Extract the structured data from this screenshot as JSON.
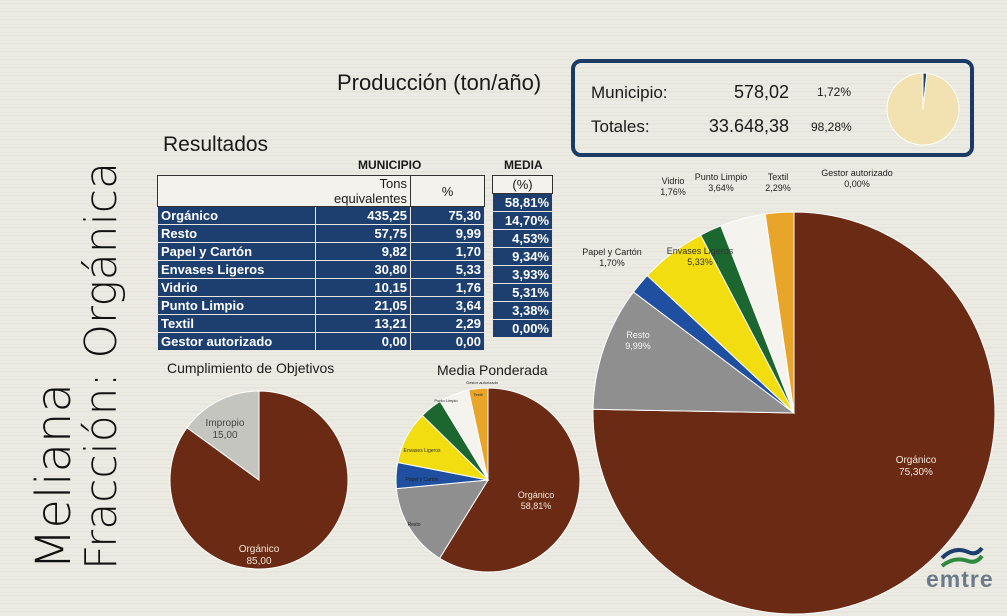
{
  "side_title": {
    "line1": "Meliana",
    "line2": "Fracción: Orgánica"
  },
  "production_title": "Producción (ton/año)",
  "results_title": "Resultados",
  "summary": {
    "municipio_label": "Municipio:",
    "municipio_value": "578,02",
    "municipio_pct": "1,72%",
    "totales_label": "Totales:",
    "totales_value": "33.648,38",
    "totales_pct": "98,28%"
  },
  "table": {
    "municipio_header": "MUNICIPIO",
    "media_header": "MEDIA",
    "col_tons": "Tons equivalentes",
    "col_pct": "%",
    "col_media": "(%)",
    "rows": [
      {
        "label": "Orgánico",
        "tons": "435,25",
        "pct": "75,30",
        "media": "58,81%"
      },
      {
        "label": "Resto",
        "tons": "57,75",
        "pct": "9,99",
        "media": "14,70%"
      },
      {
        "label": "Papel y Cartón",
        "tons": "9,82",
        "pct": "1,70",
        "media": "4,53%"
      },
      {
        "label": "Envases Ligeros",
        "tons": "30,80",
        "pct": "5,33",
        "media": "9,34%"
      },
      {
        "label": "Vidrio",
        "tons": "10,15",
        "pct": "1,76",
        "media": "3,93%"
      },
      {
        "label": "Punto Limpio",
        "tons": "21,05",
        "pct": "3,64",
        "media": "5,31%"
      },
      {
        "label": "Textil",
        "tons": "13,21",
        "pct": "2,29",
        "media": "3,38%"
      },
      {
        "label": "Gestor autorizado",
        "tons": "0,00",
        "pct": "0,00",
        "media": "0,00%"
      }
    ]
  },
  "colors": {
    "organico": "#6b2a14",
    "resto": "#8f8f8f",
    "papel": "#1f4fa0",
    "envases": "#f2dd10",
    "vidrio": "#1c6630",
    "punto": "#f4f3ee",
    "textil": "#e9a52a",
    "gestor": "#f4f3ee",
    "impropio": "#c5c5c0",
    "table_blue": "#1c3f70",
    "box_border": "#1b3a64",
    "mini_pie_main": "#f2e2b2",
    "mini_pie_slice": "#1c3f70"
  },
  "brand": "emtre",
  "chart_data": [
    {
      "type": "pie",
      "title": "Cumplimiento de Objetivos",
      "slices": [
        {
          "label": "Orgánico",
          "value": 85.0,
          "display": "85,00",
          "color": "#6b2a14"
        },
        {
          "label": "Impropio",
          "value": 15.0,
          "display": "15,00",
          "color": "#c5c5c0"
        }
      ]
    },
    {
      "type": "pie",
      "title": "Media Ponderada",
      "slices": [
        {
          "label": "Orgánico",
          "value": 58.81,
          "display": "58,81%",
          "color": "#6b2a14"
        },
        {
          "label": "Resto",
          "value": 14.7,
          "color": "#8f8f8f"
        },
        {
          "label": "Papel y Cartón",
          "value": 4.53,
          "color": "#1f4fa0"
        },
        {
          "label": "Envases Ligeros",
          "value": 9.34,
          "color": "#f2dd10"
        },
        {
          "label": "Vidrio",
          "value": 3.93,
          "color": "#1c6630"
        },
        {
          "label": "Punto Limpio",
          "value": 5.31,
          "color": "#f4f3ee"
        },
        {
          "label": "Textil",
          "value": 3.38,
          "color": "#e9a52a"
        },
        {
          "label": "Gestor autorizado",
          "value": 0.0,
          "color": "#f4f3ee"
        }
      ]
    },
    {
      "type": "pie",
      "title": "",
      "slices": [
        {
          "label": "Orgánico",
          "value": 75.3,
          "display": "75,30%",
          "color": "#6b2a14"
        },
        {
          "label": "Resto",
          "value": 9.99,
          "display": "9,99%",
          "color": "#8f8f8f"
        },
        {
          "label": "Papel y Cartón",
          "value": 1.7,
          "display": "1,70%",
          "color": "#1f4fa0"
        },
        {
          "label": "Envases Ligeros",
          "value": 5.33,
          "display": "5,33%",
          "color": "#f2dd10"
        },
        {
          "label": "Vidrio",
          "value": 1.76,
          "display": "1,76%",
          "color": "#1c6630"
        },
        {
          "label": "Punto Limpio",
          "value": 3.64,
          "display": "3,64%",
          "color": "#f4f3ee"
        },
        {
          "label": "Textil",
          "value": 2.29,
          "display": "2,29%",
          "color": "#e9a52a"
        },
        {
          "label": "Gestor autorizado",
          "value": 0.0,
          "display": "0,00%",
          "color": "#f4f3ee"
        }
      ]
    },
    {
      "type": "pie",
      "title": "",
      "slices": [
        {
          "label": "Municipio",
          "value": 1.72,
          "color": "#1c3f70"
        },
        {
          "label": "Totales",
          "value": 98.28,
          "color": "#f2e2b2"
        }
      ]
    }
  ]
}
